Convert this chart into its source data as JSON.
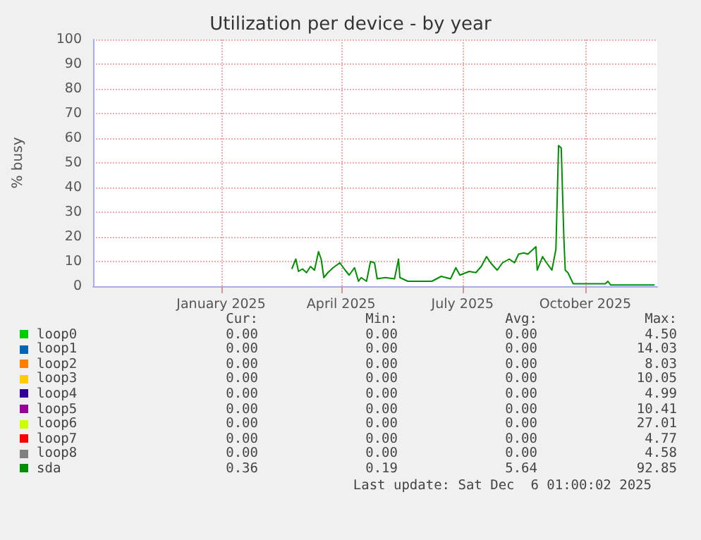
{
  "chart_data": {
    "type": "line",
    "title": "Utilization per device - by year",
    "ylabel": "% busy",
    "xlim": [
      "2024-09-27",
      "2025-11-24"
    ],
    "xticks": [
      {
        "value": "2025-01-01",
        "label": "January 2025"
      },
      {
        "value": "2025-04-01",
        "label": "April 2025"
      },
      {
        "value": "2025-07-01",
        "label": "July 2025"
      },
      {
        "value": "2025-10-01",
        "label": "October 2025"
      }
    ],
    "ylim": [
      0,
      100
    ],
    "yticks": [
      0,
      10,
      20,
      30,
      40,
      50,
      60,
      70,
      80,
      90,
      100
    ],
    "grid": true,
    "legend": "bottom",
    "marker": "none",
    "line_style": "solid",
    "series": [
      {
        "name": "loop0",
        "color": "#00cc00"
      },
      {
        "name": "loop1",
        "color": "#0066b3"
      },
      {
        "name": "loop2",
        "color": "#ff8000"
      },
      {
        "name": "loop3",
        "color": "#ffcc00"
      },
      {
        "name": "loop4",
        "color": "#330099"
      },
      {
        "name": "loop5",
        "color": "#990099"
      },
      {
        "name": "loop6",
        "color": "#ccff00"
      },
      {
        "name": "loop7",
        "color": "#ff0000"
      },
      {
        "name": "loop8",
        "color": "#808080"
      },
      {
        "name": "sda",
        "color": "#008f00",
        "x": [
          "2025-02-23",
          "2025-02-26",
          "2025-02-28",
          "2025-03-03",
          "2025-03-06",
          "2025-03-09",
          "2025-03-12",
          "2025-03-15",
          "2025-03-17",
          "2025-03-19",
          "2025-03-22",
          "2025-03-26",
          "2025-03-31",
          "2025-04-04",
          "2025-04-07",
          "2025-04-11",
          "2025-04-14",
          "2025-04-16",
          "2025-04-20",
          "2025-04-23",
          "2025-04-26",
          "2025-04-28",
          "2025-05-04",
          "2025-05-11",
          "2025-05-14",
          "2025-05-15",
          "2025-05-21",
          "2025-06-01",
          "2025-06-08",
          "2025-06-15",
          "2025-06-22",
          "2025-06-26",
          "2025-06-29",
          "2025-07-06",
          "2025-07-11",
          "2025-07-15",
          "2025-07-19",
          "2025-07-22",
          "2025-07-27",
          "2025-07-31",
          "2025-08-05",
          "2025-08-09",
          "2025-08-12",
          "2025-08-16",
          "2025-08-19",
          "2025-08-23",
          "2025-08-25",
          "2025-08-26",
          "2025-08-30",
          "2025-09-02",
          "2025-09-06",
          "2025-09-09",
          "2025-09-11",
          "2025-09-13",
          "2025-09-15",
          "2025-09-16",
          "2025-09-18",
          "2025-09-22",
          "2025-09-29",
          "2025-10-16",
          "2025-10-18",
          "2025-10-20",
          "2025-11-22"
        ],
        "values": [
          7,
          11,
          6,
          7,
          5.5,
          8,
          6.5,
          14,
          11,
          3.5,
          5.5,
          7.5,
          9.5,
          6.5,
          4.5,
          7.5,
          2,
          3.5,
          2,
          10,
          9.5,
          3,
          3.5,
          3,
          11,
          3.5,
          2,
          2,
          2,
          4,
          3,
          7.5,
          4.5,
          6,
          5.5,
          8,
          12,
          9.5,
          6.5,
          9.5,
          11,
          9.5,
          13,
          13.5,
          13,
          15,
          16,
          6.5,
          12,
          9.5,
          6.5,
          15,
          57,
          56,
          19,
          6.5,
          5.5,
          1,
          1,
          1,
          2,
          0.5,
          0.5
        ]
      }
    ],
    "annotations": [
      "Cur:",
      "Min:",
      "Avg:",
      "Max:",
      "0.00",
      "0.00",
      "0.00",
      "4.50",
      "0.00",
      "0.00",
      "0.00",
      "14.03",
      "0.00",
      "0.00",
      "0.00",
      "8.03",
      "0.00",
      "0.00",
      "0.00",
      "10.05",
      "0.00",
      "0.00",
      "0.00",
      "4.99",
      "0.00",
      "0.00",
      "0.00",
      "10.41",
      "0.00",
      "0.00",
      "0.00",
      "27.01",
      "0.00",
      "0.00",
      "0.00",
      "4.77",
      "0.00",
      "0.00",
      "0.00",
      "4.58",
      "0.36",
      "0.19",
      "5.64",
      "92.85",
      "Last update: Sat Dec  6 01:00:02 2025"
    ]
  }
}
